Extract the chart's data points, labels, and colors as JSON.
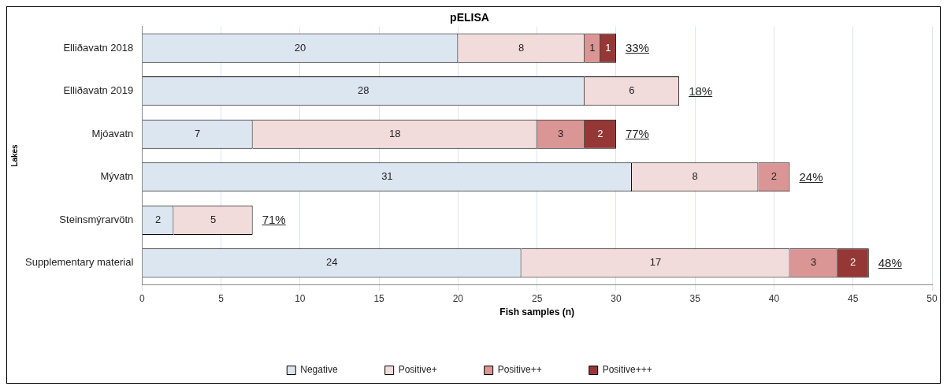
{
  "chart_data": {
    "type": "bar",
    "orientation": "horizontal",
    "stacked": true,
    "title": "pELISA",
    "xlabel": "Fish samples (n)",
    "ylabel": "Lakes",
    "categories": [
      "Elliðavatn 2018",
      "Elliðavatn 2019",
      "Mjóavatn",
      "Mývatn",
      "Steinsmýrarvötn",
      "Supplementary material"
    ],
    "series": [
      {
        "name": "Negative",
        "color": "#dce6f1",
        "values": [
          20,
          28,
          7,
          31,
          2,
          24
        ]
      },
      {
        "name": "Positive+",
        "color": "#f2dcdb",
        "values": [
          8,
          6,
          18,
          8,
          5,
          17
        ]
      },
      {
        "name": "Positive++",
        "color": "#d99694",
        "values": [
          1,
          null,
          3,
          2,
          null,
          3
        ]
      },
      {
        "name": "Positive+++",
        "color": "#953735",
        "values": [
          1,
          null,
          2,
          null,
          null,
          2
        ]
      }
    ],
    "xlim": [
      0,
      50
    ],
    "xticks": [
      0,
      5,
      10,
      15,
      20,
      25,
      30,
      35,
      40,
      45,
      50
    ],
    "grid": "x",
    "legend": "bottom",
    "data_labels": true,
    "annotations": [
      {
        "text": "33%",
        "x": 30,
        "y": "Elliðavatn 2018"
      },
      {
        "text": "18%",
        "x": 34,
        "y": "Elliðavatn 2019"
      },
      {
        "text": "77%",
        "x": 30,
        "y": "Mjóavatn"
      },
      {
        "text": "24%",
        "x": 41,
        "y": "Mývatn"
      },
      {
        "text": "71%",
        "x": 7,
        "y": "Steinsmýrarvötn"
      },
      {
        "text": "48%",
        "x": 46,
        "y": "Supplementary material"
      }
    ]
  }
}
